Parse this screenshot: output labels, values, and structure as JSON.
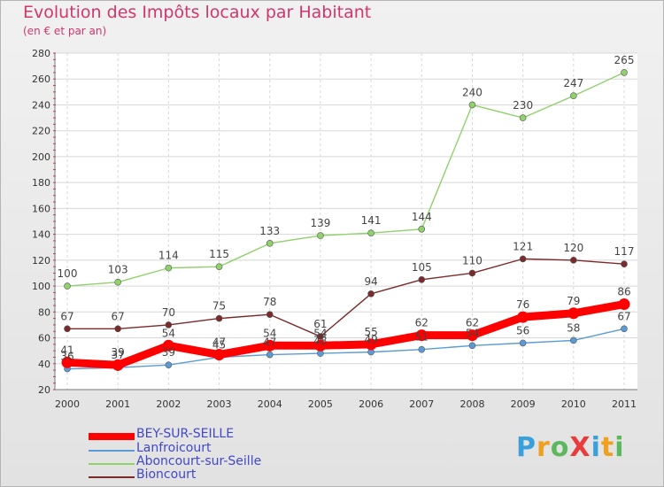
{
  "title": "Evolution des Impôts locaux par Habitant",
  "subtitle": "(en € et par an)",
  "logo": {
    "text": "ProXiti",
    "colors": [
      "#3aa0dc",
      "#f0a020",
      "#5cb85c",
      "#e83c3c",
      "#3aa0dc",
      "#f0a020",
      "#5cb85c"
    ]
  },
  "chart_data": {
    "type": "line",
    "x": [
      "2000",
      "2001",
      "2002",
      "2003",
      "2004",
      "2005",
      "2006",
      "2007",
      "2008",
      "2009",
      "2010",
      "2011"
    ],
    "ylim": [
      20,
      280
    ],
    "yticks": [
      20,
      40,
      60,
      80,
      100,
      120,
      140,
      160,
      180,
      200,
      220,
      240,
      260,
      280
    ],
    "grid": true,
    "legend_position": "bottom-left",
    "series": [
      {
        "name": "BEY-SUR-SEILLE",
        "color": "#ff0000",
        "values": [
          41,
          39,
          54,
          47,
          54,
          54,
          55,
          62,
          62,
          76,
          79,
          86
        ]
      },
      {
        "name": "Lanfroicourt",
        "color": "#5b9bd5",
        "values": [
          36,
          37,
          39,
          45,
          47,
          48,
          49,
          51,
          54,
          56,
          58,
          67
        ]
      },
      {
        "name": "Aboncourt-sur-Seille",
        "color": "#8fd16a",
        "values": [
          100,
          103,
          114,
          115,
          133,
          139,
          141,
          144,
          240,
          230,
          247,
          265
        ]
      },
      {
        "name": "Bioncourt",
        "color": "#7a2a2a",
        "values": [
          67,
          67,
          70,
          75,
          78,
          61,
          94,
          105,
          110,
          121,
          120,
          117
        ]
      }
    ]
  }
}
